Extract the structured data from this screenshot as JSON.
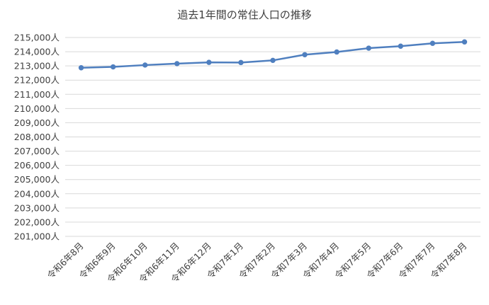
{
  "chart_data": {
    "type": "line",
    "title": "過去1年間の常住人口の推移",
    "xlabel": "",
    "ylabel": "",
    "categories": [
      "令和6年8月",
      "令和6年9月",
      "令和6年10月",
      "令和6年11月",
      "令和6年12月",
      "令和7年1月",
      "令和7年2月",
      "令和7年3月",
      "令和7年4月",
      "令和7年5月",
      "令和7年6月",
      "令和7年7月",
      "令和7年8月"
    ],
    "series": [
      {
        "values": [
          212870,
          212930,
          213060,
          213160,
          213250,
          213240,
          213390,
          213790,
          213980,
          214250,
          214390,
          214590,
          214690
        ]
      }
    ],
    "ylim": [
      201000,
      215000
    ],
    "yticks": [
      "201,000人",
      "202,000人",
      "203,000人",
      "204,000人",
      "205,000人",
      "206,000人",
      "207,000人",
      "208,000人",
      "209,000人",
      "210,000人",
      "211,000人",
      "212,000人",
      "213,000人",
      "214,000人",
      "215,000人"
    ],
    "grid": true,
    "legend": "none",
    "line_color": "#4f7fbf"
  }
}
